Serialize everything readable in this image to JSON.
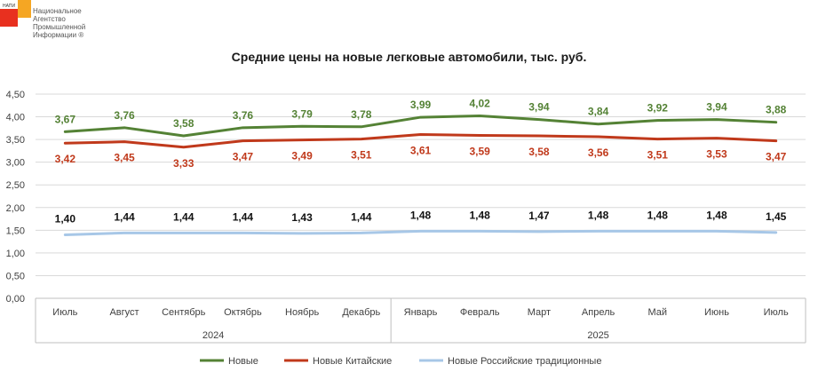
{
  "logo": {
    "small_text": "НАПИ",
    "lines": [
      "Национальное",
      "Агентство",
      "Промышленной",
      "Информации ®"
    ]
  },
  "chart_data": {
    "type": "line",
    "title": "Средние цены на новые легковые автомобили, тыс. руб.",
    "categories": [
      "Июль",
      "Август",
      "Сентябрь",
      "Октябрь",
      "Ноябрь",
      "Декабрь",
      "Январь",
      "Февраль",
      "Март",
      "Апрель",
      "Май",
      "Июнь",
      "Июль"
    ],
    "category_groups": [
      {
        "label": "2024",
        "count": 6
      },
      {
        "label": "2025",
        "count": 7
      }
    ],
    "ylim": [
      0,
      4.5
    ],
    "yticks": [
      "0,00",
      "0,50",
      "1,00",
      "1,50",
      "2,00",
      "2,50",
      "3,00",
      "3,50",
      "4,00",
      "4,50"
    ],
    "grid": true,
    "legend": "bottom",
    "series": [
      {
        "name": "Новые",
        "color": "#548235",
        "values": [
          3.67,
          3.76,
          3.58,
          3.76,
          3.79,
          3.78,
          3.99,
          4.02,
          3.94,
          3.84,
          3.92,
          3.94,
          3.88
        ],
        "labels": [
          "3,67",
          "3,76",
          "3,58",
          "3,76",
          "3,79",
          "3,78",
          "3,99",
          "4,02",
          "3,94",
          "3,84",
          "3,92",
          "3,94",
          "3,88"
        ]
      },
      {
        "name": "Новые Китайские",
        "color": "#c0391b",
        "values": [
          3.42,
          3.45,
          3.33,
          3.47,
          3.49,
          3.51,
          3.61,
          3.59,
          3.58,
          3.56,
          3.51,
          3.53,
          3.47
        ],
        "labels": [
          "3,42",
          "3,45",
          "3,33",
          "3,47",
          "3,49",
          "3,51",
          "3,61",
          "3,59",
          "3,58",
          "3,56",
          "3,51",
          "3,53",
          "3,47"
        ]
      },
      {
        "name": "Новые Российские традиционные",
        "color": "#a7c7e7",
        "values": [
          1.4,
          1.44,
          1.44,
          1.44,
          1.43,
          1.44,
          1.48,
          1.48,
          1.47,
          1.48,
          1.48,
          1.48,
          1.45
        ],
        "labels": [
          "1,40",
          "1,44",
          "1,44",
          "1,44",
          "1,43",
          "1,44",
          "1,48",
          "1,48",
          "1,47",
          "1,48",
          "1,48",
          "1,48",
          "1,45"
        ]
      }
    ]
  }
}
